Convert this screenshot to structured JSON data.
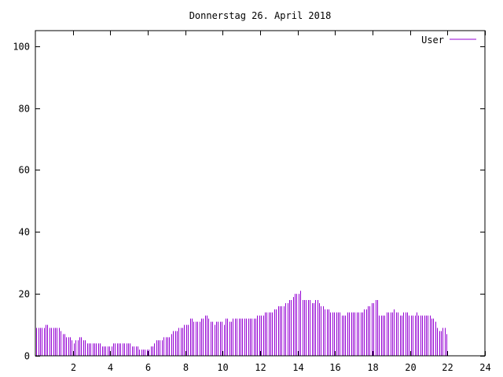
{
  "chart_data": {
    "type": "bar",
    "title": "Donnerstag 26. April 2018",
    "xlabel": "",
    "ylabel": "",
    "xlim": [
      0,
      24
    ],
    "ylim": [
      0,
      105
    ],
    "x_ticks": [
      2,
      4,
      6,
      8,
      10,
      12,
      14,
      16,
      18,
      20,
      22,
      24
    ],
    "x_tick_labels": [
      "2",
      "4",
      "6",
      "8",
      "10",
      "12",
      "14",
      "16",
      "18",
      "20",
      "22",
      "24"
    ],
    "y_ticks": [
      0,
      20,
      40,
      60,
      80,
      100
    ],
    "y_tick_labels": [
      "0",
      "20",
      "40",
      "60",
      "80",
      "100"
    ],
    "grid": false,
    "legend_position": "top-right",
    "series": [
      {
        "name": "User",
        "color": "#9400d3",
        "bin_hours": 0.1,
        "values": [
          9,
          9,
          9,
          9,
          9,
          10,
          10,
          9,
          9,
          9,
          9,
          9,
          9,
          8,
          7,
          7,
          6,
          6,
          6,
          5,
          4,
          5,
          5,
          6,
          6,
          5,
          5,
          4,
          4,
          4,
          4,
          4,
          4,
          4,
          4,
          3,
          3,
          3,
          3,
          3,
          3,
          4,
          4,
          4,
          4,
          4,
          4,
          4,
          4,
          4,
          4,
          3,
          3,
          3,
          3,
          2,
          2,
          2,
          2,
          2,
          2,
          3,
          3,
          4,
          5,
          5,
          5,
          5,
          6,
          6,
          6,
          6,
          7,
          8,
          8,
          8,
          9,
          9,
          9,
          10,
          10,
          10,
          12,
          12,
          11,
          11,
          11,
          11,
          12,
          12,
          13,
          13,
          12,
          11,
          11,
          10,
          11,
          11,
          11,
          11,
          10,
          12,
          12,
          11,
          11,
          12,
          12,
          12,
          12,
          12,
          12,
          12,
          12,
          12,
          12,
          12,
          12,
          12,
          13,
          13,
          13,
          13,
          14,
          14,
          14,
          14,
          14,
          15,
          15,
          16,
          16,
          16,
          16,
          17,
          17,
          18,
          18,
          19,
          20,
          20,
          20,
          21,
          18,
          18,
          18,
          18,
          18,
          17,
          17,
          18,
          18,
          17,
          16,
          16,
          15,
          15,
          15,
          14,
          14,
          14,
          14,
          14,
          14,
          13,
          13,
          13,
          14,
          14,
          14,
          14,
          14,
          14,
          14,
          14,
          14,
          15,
          15,
          16,
          16,
          17,
          17,
          18,
          18,
          13,
          13,
          13,
          13,
          14,
          14,
          14,
          14,
          15,
          14,
          14,
          13,
          13,
          14,
          14,
          14,
          13,
          13,
          13,
          13,
          14,
          13,
          13,
          13,
          13,
          13,
          13,
          13,
          12,
          12,
          11,
          9,
          8,
          8,
          9,
          9,
          7
        ]
      }
    ]
  }
}
